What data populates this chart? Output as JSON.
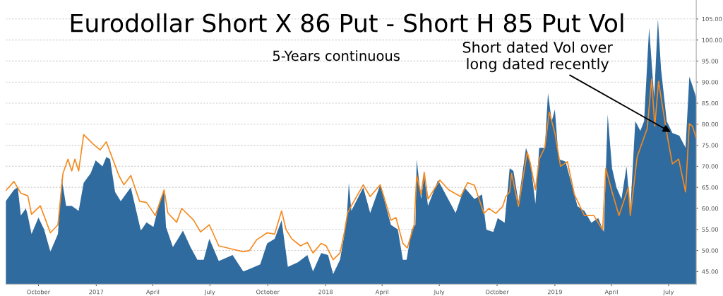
{
  "chart_data": {
    "type": "area",
    "title": "Eurodollar Short X 86 Put - Short H 85 Put Vol",
    "subtitle": "5-Years continuous",
    "annotations": [
      {
        "text": "Short dated Vol over\nlong dated recently",
        "x": "2019-07-07",
        "y": 77.9
      }
    ],
    "series": [
      {
        "color": "#2f6b9f",
        "x": [
          "2016-08-10",
          "2016-08-23",
          "2016-08-29",
          "2016-09-03",
          "2016-09-11",
          "2016-09-14",
          "2016-09-20",
          "2016-10-01",
          "2016-10-10",
          "2016-10-20",
          "2016-11-01",
          "2016-11-07",
          "2016-11-14",
          "2016-11-23",
          "2016-12-04",
          "2016-12-12",
          "2016-12-23",
          "2016-12-31",
          "2017-01-11",
          "2017-01-17",
          "2017-01-23",
          "2017-01-31",
          "2017-02-09",
          "2017-02-25",
          "2017-03-13",
          "2017-03-22",
          "2017-04-02",
          "2017-04-13",
          "2017-04-19",
          "2017-04-22",
          "2017-05-03",
          "2017-05-19",
          "2017-05-31",
          "2017-06-11",
          "2017-06-21",
          "2017-06-30",
          "2017-07-15",
          "2017-08-06",
          "2017-08-23",
          "2017-09-02",
          "2017-09-19",
          "2017-09-30",
          "2017-10-12",
          "2017-10-23",
          "2017-11-02",
          "2017-11-18",
          "2017-12-03",
          "2017-12-12",
          "2017-12-25",
          "2018-01-05",
          "2018-01-13",
          "2018-01-24",
          "2018-01-31",
          "2018-02-04",
          "2018-02-07",
          "2018-02-11",
          "2018-03-02",
          "2018-03-13",
          "2018-03-29",
          "2018-04-15",
          "2018-04-26",
          "2018-05-04",
          "2018-05-10",
          "2018-05-18",
          "2018-05-24",
          "2018-05-26",
          "2018-06-02",
          "2018-06-07",
          "2018-06-13",
          "2018-06-29",
          "2018-07-13",
          "2018-07-27",
          "2018-08-10",
          "2018-08-26",
          "2018-09-07",
          "2018-09-14",
          "2018-09-25",
          "2018-10-02",
          "2018-10-13",
          "2018-10-21",
          "2018-10-27",
          "2018-11-04",
          "2018-11-16",
          "2018-11-23",
          "2018-12-01",
          "2018-12-07",
          "2018-12-16",
          "2018-12-21",
          "2018-12-27",
          "2019-01-01",
          "2019-01-07",
          "2019-01-18",
          "2019-01-29",
          "2019-02-06",
          "2019-02-17",
          "2019-02-28",
          "2019-03-11",
          "2019-03-20",
          "2019-03-26",
          "2019-04-02",
          "2019-04-09",
          "2019-04-17",
          "2019-04-25",
          "2019-05-01",
          "2019-05-09",
          "2019-05-17",
          "2019-05-23",
          "2019-05-31",
          "2019-06-08",
          "2019-06-14",
          "2019-06-19",
          "2019-06-28",
          "2019-07-07",
          "2019-07-18",
          "2019-07-28",
          "2019-08-03",
          "2019-08-08",
          "2019-08-14"
        ],
        "values": [
          61.7,
          64.4,
          65,
          58.3,
          60,
          58.3,
          53.9,
          57.8,
          55,
          49.7,
          53.9,
          67.2,
          60.6,
          60.6,
          59.4,
          66.1,
          68.3,
          71.4,
          70,
          72.2,
          71.7,
          63.9,
          61.7,
          65,
          54.7,
          56.7,
          55.6,
          62.2,
          63.9,
          55.6,
          50.8,
          54.7,
          50.8,
          47.8,
          47.8,
          52.8,
          47.5,
          48.9,
          45,
          45.6,
          46.7,
          51.7,
          52.8,
          57.2,
          46.1,
          47.2,
          48.9,
          45,
          49.4,
          48.9,
          44.4,
          47.8,
          53.9,
          58.3,
          66.1,
          59.4,
          65,
          58.9,
          65.6,
          56.1,
          55,
          47.8,
          47.8,
          55,
          56.1,
          71.7,
          62.2,
          67.8,
          60.6,
          66.7,
          62.8,
          58.9,
          65,
          62.2,
          63.3,
          54.9,
          54.4,
          57.7,
          56.6,
          69.5,
          68.9,
          61.6,
          74.4,
          71,
          61.1,
          74.4,
          74.4,
          87.4,
          80.7,
          83.5,
          71.7,
          71.1,
          65,
          60.5,
          59.4,
          56.6,
          57.7,
          54.4,
          82.3,
          69.5,
          65,
          62.2,
          70,
          59.4,
          80.7,
          78.4,
          80.7,
          103,
          86.3,
          105,
          93,
          80.7,
          77.9,
          77.3,
          74.4,
          91.3,
          89.1,
          86.3
        ]
      },
      {
        "type": "line",
        "color": "#f58a1f",
        "x": [
          "2016-08-10",
          "2016-08-23",
          "2016-09-03",
          "2016-09-14",
          "2016-09-20",
          "2016-10-04",
          "2016-10-20",
          "2016-11-01",
          "2016-11-09",
          "2016-11-17",
          "2016-11-23",
          "2016-11-28",
          "2016-12-04",
          "2016-12-12",
          "2016-12-27",
          "2017-01-07",
          "2017-01-17",
          "2017-01-26",
          "2017-02-06",
          "2017-02-14",
          "2017-02-25",
          "2017-03-11",
          "2017-03-22",
          "2017-04-05",
          "2017-04-19",
          "2017-04-25",
          "2017-05-09",
          "2017-05-17",
          "2017-06-05",
          "2017-06-16",
          "2017-06-30",
          "2017-07-15",
          "2017-08-06",
          "2017-08-23",
          "2017-09-02",
          "2017-09-13",
          "2017-09-30",
          "2017-10-12",
          "2017-10-23",
          "2017-10-30",
          "2017-11-08",
          "2017-11-22",
          "2017-12-03",
          "2017-12-12",
          "2017-12-25",
          "2018-01-02",
          "2018-01-13",
          "2018-01-24",
          "2018-01-31",
          "2018-02-05",
          "2018-02-11",
          "2018-03-02",
          "2018-03-13",
          "2018-03-29",
          "2018-04-15",
          "2018-04-23",
          "2018-05-04",
          "2018-05-11",
          "2018-05-22",
          "2018-05-26",
          "2018-06-02",
          "2018-06-07",
          "2018-06-13",
          "2018-07-02",
          "2018-07-16",
          "2018-08-04",
          "2018-08-15",
          "2018-08-26",
          "2018-09-10",
          "2018-09-18",
          "2018-09-29",
          "2018-10-10",
          "2018-10-15",
          "2018-10-21",
          "2018-10-24",
          "2018-11-04",
          "2018-11-18",
          "2018-11-23",
          "2018-12-01",
          "2018-12-07",
          "2018-12-16",
          "2018-12-23",
          "2019-01-01",
          "2019-01-10",
          "2019-01-21",
          "2019-02-01",
          "2019-02-17",
          "2019-03-04",
          "2019-03-18",
          "2019-03-23",
          "2019-04-02",
          "2019-04-13",
          "2019-04-28",
          "2019-05-01",
          "2019-05-12",
          "2019-05-28",
          "2019-06-04",
          "2019-06-09",
          "2019-06-15",
          "2019-06-22",
          "2019-06-30",
          "2019-07-07",
          "2019-07-17",
          "2019-07-28",
          "2019-08-03",
          "2019-08-08",
          "2019-08-14"
        ],
        "values": [
          64.2,
          66.4,
          63.6,
          63,
          58.6,
          60.6,
          54.2,
          56.1,
          68.3,
          71.7,
          68.9,
          71.7,
          68.9,
          77.5,
          75.3,
          73.9,
          75.8,
          72.2,
          67.8,
          65.6,
          67.8,
          61.7,
          61.4,
          58.3,
          64.4,
          58.9,
          56.7,
          60,
          57.2,
          54.4,
          56.1,
          51.1,
          50.3,
          49.7,
          50,
          52.5,
          54.2,
          53.9,
          59.4,
          55,
          52.8,
          51.1,
          51.9,
          49.4,
          51.7,
          51.1,
          47.8,
          49.4,
          54.4,
          58.9,
          60.6,
          65.6,
          62.8,
          65.6,
          57.2,
          57.8,
          51.7,
          50.6,
          56.1,
          67.8,
          63.3,
          68.6,
          62.2,
          66.7,
          64.4,
          62.8,
          66.1,
          65.5,
          58.8,
          60,
          58.8,
          60.5,
          62.8,
          63.9,
          68.3,
          60.5,
          73.4,
          70.6,
          64.4,
          71.7,
          74.5,
          82.9,
          77.9,
          70,
          71.1,
          63.3,
          58.3,
          58.3,
          54.9,
          69.5,
          63.9,
          58.3,
          65,
          58.3,
          72.3,
          79,
          90.7,
          79.5,
          90.2,
          83.5,
          76.2,
          70.6,
          71.7,
          63.9,
          80.1,
          79.5,
          76.7
        ]
      }
    ],
    "xlim": [
      "2016-08-10",
      "2019-08-14"
    ],
    "xticks": [
      {
        "value": "2016-10-01",
        "label": "October"
      },
      {
        "value": "2017-01-01",
        "label": "2017"
      },
      {
        "value": "2017-04-01",
        "label": "April"
      },
      {
        "value": "2017-07-01",
        "label": "July"
      },
      {
        "value": "2017-10-01",
        "label": "October"
      },
      {
        "value": "2018-01-01",
        "label": "2018"
      },
      {
        "value": "2018-04-01",
        "label": "April"
      },
      {
        "value": "2018-07-01",
        "label": "July"
      },
      {
        "value": "2018-10-01",
        "label": "October"
      },
      {
        "value": "2019-01-01",
        "label": "2019"
      },
      {
        "value": "2019-04-01",
        "label": "April"
      },
      {
        "value": "2019-07-01",
        "label": "July"
      }
    ],
    "ylim": [
      42,
      109.5
    ],
    "yticks": [
      {
        "value": 45,
        "label": "45.00"
      },
      {
        "value": 50,
        "label": "50.00"
      },
      {
        "value": 55,
        "label": "55.00"
      },
      {
        "value": 60,
        "label": "60.00"
      },
      {
        "value": 65,
        "label": "65.00"
      },
      {
        "value": 70,
        "label": "70.00"
      },
      {
        "value": 75,
        "label": "75.00"
      },
      {
        "value": 80,
        "label": "80.00"
      },
      {
        "value": 85,
        "label": "85.00"
      },
      {
        "value": 90,
        "label": "90.00"
      },
      {
        "value": 95,
        "label": "95.00"
      },
      {
        "value": 100,
        "label": "100.00"
      },
      {
        "value": 105,
        "label": "105.00"
      }
    ],
    "grid": "y",
    "legend": false
  }
}
